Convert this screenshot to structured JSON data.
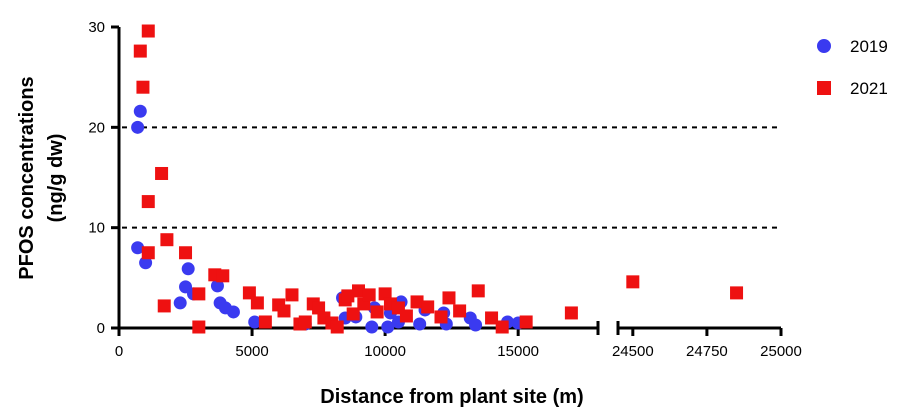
{
  "chart_data": {
    "type": "scatter",
    "ylabel_line1": "PFOS concentrations",
    "ylabel_line2": "(ng/g dw)",
    "xlabel": "Distance from plant site (m)",
    "ylim": [
      0,
      30
    ],
    "yticks": [
      "0",
      "10",
      "20",
      "30"
    ],
    "reference_lines": [
      10,
      20
    ],
    "x_axis_break": true,
    "x_segments": [
      {
        "range": [
          0,
          18000
        ],
        "ticks": [
          "0",
          "5000",
          "10000",
          "15000"
        ],
        "tick_values": [
          0,
          5000,
          10000,
          15000
        ]
      },
      {
        "range": [
          24450,
          25000
        ],
        "ticks": [
          "24500",
          "24750",
          "25000"
        ],
        "tick_values": [
          24500,
          24750,
          25000
        ]
      }
    ],
    "legend_position": "top-right",
    "series": [
      {
        "name": "2019",
        "color": "#3a3af0",
        "marker": "circle",
        "points": [
          [
            700,
            20
          ],
          [
            800,
            21.6
          ],
          [
            700,
            8
          ],
          [
            1000,
            6.5
          ],
          [
            2300,
            2.5
          ],
          [
            2500,
            4.1
          ],
          [
            2600,
            5.9
          ],
          [
            2800,
            3.4
          ],
          [
            3700,
            4.2
          ],
          [
            3800,
            2.5
          ],
          [
            4000,
            2.0
          ],
          [
            4300,
            1.6
          ],
          [
            5100,
            0.6
          ],
          [
            7000,
            0.4
          ],
          [
            8400,
            3.0
          ],
          [
            8500,
            1.0
          ],
          [
            8900,
            1.1
          ],
          [
            9500,
            0.1
          ],
          [
            9600,
            2.0
          ],
          [
            10100,
            0.1
          ],
          [
            10200,
            1.5
          ],
          [
            10500,
            0.6
          ],
          [
            10600,
            2.6
          ],
          [
            11300,
            0.4
          ],
          [
            11500,
            1.8
          ],
          [
            12200,
            1.5
          ],
          [
            12300,
            0.4
          ],
          [
            13200,
            1.0
          ],
          [
            13400,
            0.3
          ],
          [
            14600,
            0.6
          ],
          [
            15000,
            0.5
          ]
        ]
      },
      {
        "name": "2021",
        "color": "#ee1111",
        "marker": "square",
        "points": [
          [
            800,
            27.6
          ],
          [
            900,
            24.0
          ],
          [
            1100,
            29.6
          ],
          [
            1100,
            12.6
          ],
          [
            1100,
            7.5
          ],
          [
            1600,
            15.4
          ],
          [
            1700,
            2.2
          ],
          [
            1800,
            8.8
          ],
          [
            2500,
            7.5
          ],
          [
            3000,
            0.1
          ],
          [
            3000,
            3.4
          ],
          [
            3600,
            5.3
          ],
          [
            3900,
            5.2
          ],
          [
            4900,
            3.5
          ],
          [
            5200,
            2.5
          ],
          [
            5500,
            0.6
          ],
          [
            6000,
            2.3
          ],
          [
            6200,
            1.7
          ],
          [
            6500,
            3.3
          ],
          [
            6800,
            0.4
          ],
          [
            7000,
            0.6
          ],
          [
            7300,
            2.4
          ],
          [
            7500,
            2.0
          ],
          [
            7700,
            1.0
          ],
          [
            8000,
            0.5
          ],
          [
            8200,
            0.1
          ],
          [
            8500,
            2.8
          ],
          [
            8600,
            3.2
          ],
          [
            8800,
            1.4
          ],
          [
            9000,
            3.7
          ],
          [
            9200,
            2.4
          ],
          [
            9400,
            3.3
          ],
          [
            9700,
            1.6
          ],
          [
            10000,
            3.4
          ],
          [
            10200,
            2.4
          ],
          [
            10500,
            2.0
          ],
          [
            10800,
            1.2
          ],
          [
            11200,
            2.6
          ],
          [
            11600,
            2.1
          ],
          [
            12100,
            1.1
          ],
          [
            12400,
            3.0
          ],
          [
            12800,
            1.7
          ],
          [
            13500,
            3.7
          ],
          [
            14000,
            1.0
          ],
          [
            14400,
            0.1
          ],
          [
            15300,
            0.6
          ],
          [
            17000,
            1.5
          ],
          [
            24500,
            4.6
          ],
          [
            24850,
            3.5
          ]
        ]
      }
    ]
  }
}
